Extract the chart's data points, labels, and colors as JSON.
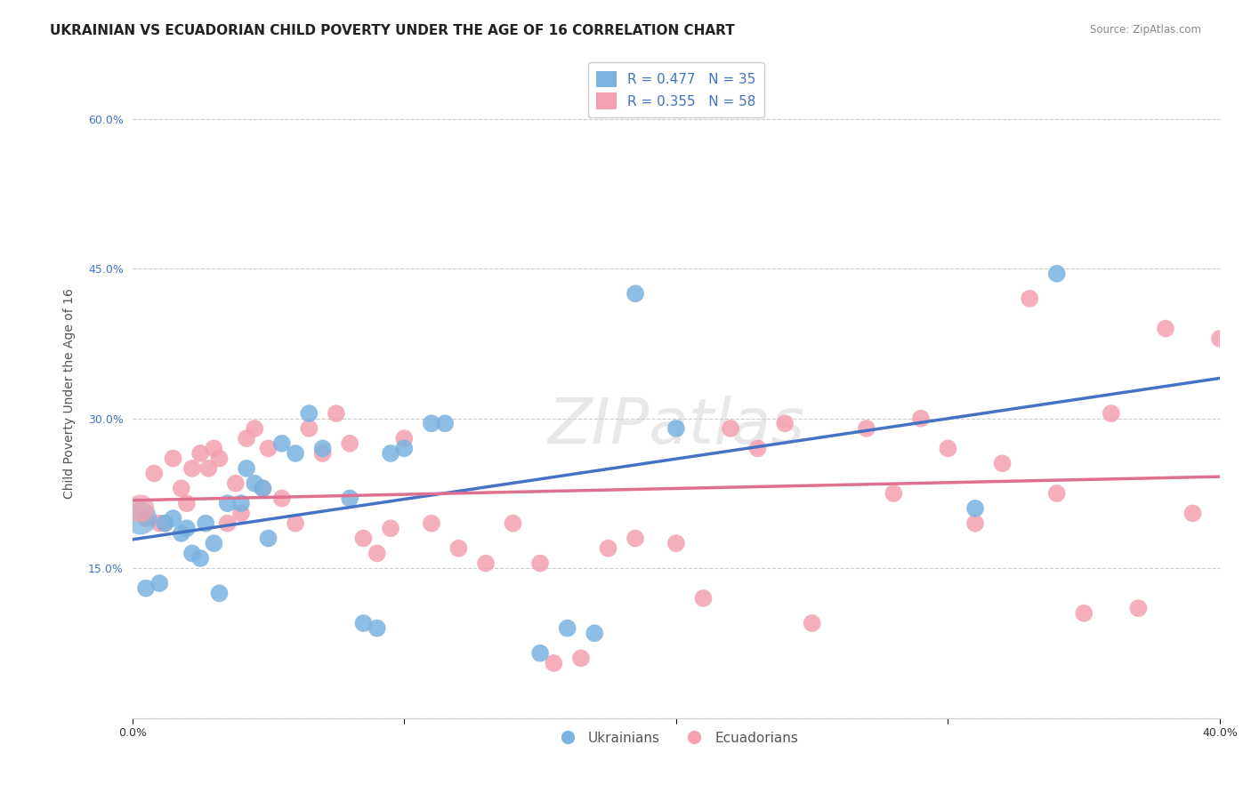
{
  "title": "UKRAINIAN VS ECUADORIAN CHILD POVERTY UNDER THE AGE OF 16 CORRELATION CHART",
  "source": "Source: ZipAtlas.com",
  "ylabel": "Child Poverty Under the Age of 16",
  "xlabel": "",
  "xlim": [
    0.0,
    0.4
  ],
  "ylim": [
    0.0,
    0.65
  ],
  "yticks": [
    0.0,
    0.15,
    0.3,
    0.45,
    0.6
  ],
  "xticks": [
    0.0,
    0.1,
    0.2,
    0.3,
    0.4
  ],
  "legend_entry1": "R = 0.477   N = 35",
  "legend_entry2": "R = 0.355   N = 58",
  "blue_color": "#7ab3e0",
  "pink_color": "#f4a0b0",
  "line_blue": "#4472c4",
  "line_pink": "#e07090",
  "watermark": "ZIPatlas",
  "ukrainians_x": [
    0.005,
    0.01,
    0.012,
    0.015,
    0.018,
    0.02,
    0.022,
    0.025,
    0.027,
    0.03,
    0.032,
    0.035,
    0.04,
    0.042,
    0.045,
    0.048,
    0.05,
    0.055,
    0.06,
    0.065,
    0.07,
    0.08,
    0.085,
    0.09,
    0.095,
    0.1,
    0.11,
    0.115,
    0.15,
    0.16,
    0.17,
    0.185,
    0.2,
    0.31,
    0.34
  ],
  "ukrainians_y": [
    0.13,
    0.135,
    0.195,
    0.2,
    0.185,
    0.19,
    0.165,
    0.16,
    0.195,
    0.175,
    0.125,
    0.215,
    0.215,
    0.25,
    0.235,
    0.23,
    0.18,
    0.275,
    0.265,
    0.305,
    0.27,
    0.22,
    0.095,
    0.09,
    0.265,
    0.27,
    0.295,
    0.295,
    0.065,
    0.09,
    0.085,
    0.425,
    0.29,
    0.21,
    0.445
  ],
  "ecuadorians_x": [
    0.005,
    0.008,
    0.01,
    0.012,
    0.015,
    0.018,
    0.02,
    0.022,
    0.025,
    0.028,
    0.03,
    0.032,
    0.035,
    0.038,
    0.04,
    0.042,
    0.045,
    0.048,
    0.05,
    0.055,
    0.06,
    0.065,
    0.07,
    0.075,
    0.08,
    0.085,
    0.09,
    0.095,
    0.1,
    0.11,
    0.12,
    0.13,
    0.14,
    0.15,
    0.155,
    0.165,
    0.175,
    0.185,
    0.2,
    0.21,
    0.22,
    0.23,
    0.24,
    0.25,
    0.27,
    0.28,
    0.29,
    0.3,
    0.31,
    0.32,
    0.33,
    0.34,
    0.35,
    0.36,
    0.37,
    0.38,
    0.39,
    0.4
  ],
  "ecuadorians_y": [
    0.2,
    0.245,
    0.195,
    0.195,
    0.26,
    0.23,
    0.215,
    0.25,
    0.265,
    0.25,
    0.27,
    0.26,
    0.195,
    0.235,
    0.205,
    0.28,
    0.29,
    0.23,
    0.27,
    0.22,
    0.195,
    0.29,
    0.265,
    0.305,
    0.275,
    0.18,
    0.165,
    0.19,
    0.28,
    0.195,
    0.17,
    0.155,
    0.195,
    0.155,
    0.055,
    0.06,
    0.17,
    0.18,
    0.175,
    0.12,
    0.29,
    0.27,
    0.295,
    0.095,
    0.29,
    0.225,
    0.3,
    0.27,
    0.195,
    0.255,
    0.42,
    0.225,
    0.105,
    0.305,
    0.11,
    0.39,
    0.205,
    0.38
  ]
}
